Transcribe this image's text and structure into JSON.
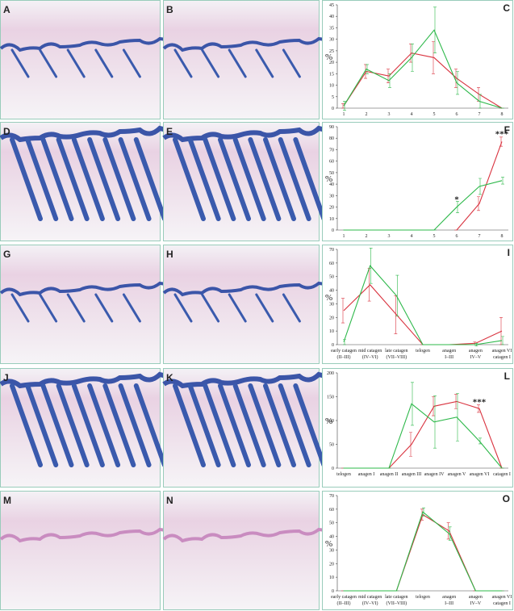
{
  "image_panels": [
    "A",
    "B",
    "D",
    "E",
    "G",
    "H",
    "J",
    "K",
    "M",
    "N"
  ],
  "chart_data": [
    {
      "type": "line",
      "panel_label": "C",
      "ylabel": "%",
      "categories": [
        "1",
        "2",
        "3",
        "4",
        "5",
        "6",
        "7",
        "8"
      ],
      "ylim": [
        0,
        45
      ],
      "yticks": [
        0,
        5,
        10,
        15,
        20,
        25,
        30,
        35,
        40,
        45
      ],
      "series": [
        {
          "color": "#d9333f",
          "values": [
            1,
            16,
            14,
            24,
            22,
            13,
            6,
            0
          ],
          "errors": [
            1,
            3,
            3,
            4,
            7,
            4,
            3,
            0
          ]
        },
        {
          "color": "#2db84a",
          "values": [
            1,
            17,
            12,
            22,
            34,
            11,
            3,
            0
          ],
          "errors": [
            2,
            2,
            3,
            6,
            10,
            5,
            3,
            0
          ]
        }
      ]
    },
    {
      "type": "line",
      "panel_label": "F",
      "ylabel": "%",
      "categories": [
        "1",
        "2",
        "3",
        "4",
        "5",
        "6",
        "7",
        "8"
      ],
      "ylim": [
        0,
        90
      ],
      "yticks": [
        0,
        10,
        20,
        30,
        40,
        50,
        60,
        70,
        80,
        90
      ],
      "annotations": [
        {
          "text": "*",
          "index": 5,
          "value": 27
        },
        {
          "text": "***",
          "index": 7,
          "value": 84
        }
      ],
      "series": [
        {
          "color": "#d9333f",
          "values": [
            null,
            null,
            null,
            null,
            null,
            0,
            23,
            77
          ],
          "errors": [
            null,
            null,
            null,
            null,
            null,
            0,
            6,
            4
          ]
        },
        {
          "color": "#2db84a",
          "values": [
            0,
            0,
            0,
            0,
            0,
            20,
            38,
            43
          ],
          "errors": [
            0,
            0,
            0,
            0,
            0,
            5,
            7,
            3
          ]
        }
      ]
    },
    {
      "type": "line",
      "panel_label": "I",
      "ylabel": "%",
      "categories": [
        [
          "early catagen",
          "(II–III)"
        ],
        [
          "mid catagen",
          "(IV–VI)"
        ],
        [
          "late catagen",
          "(VII–VIII)"
        ],
        [
          "telogen"
        ],
        [
          "anagen",
          "I–III"
        ],
        [
          "anagen",
          "IV–V"
        ],
        [
          "anagen VI",
          "catagen I"
        ]
      ],
      "ylim": [
        0,
        70
      ],
      "yticks": [
        0,
        10,
        20,
        30,
        40,
        50,
        60,
        70
      ],
      "series": [
        {
          "color": "#d9333f",
          "values": [
            25,
            44,
            22,
            0,
            0,
            1,
            10
          ],
          "errors": [
            9,
            12,
            14,
            0,
            0,
            1,
            10
          ]
        },
        {
          "color": "#2db84a",
          "values": [
            2,
            58,
            36,
            0,
            0,
            0,
            3
          ],
          "errors": [
            2,
            13,
            15,
            0,
            0,
            1,
            3
          ]
        }
      ]
    },
    {
      "type": "line",
      "panel_label": "L",
      "ylabel": "%",
      "categories": [
        [
          "telogen"
        ],
        [
          "anagen I"
        ],
        [
          "anagen II"
        ],
        [
          "anagen III"
        ],
        [
          "anagen IV"
        ],
        [
          "anagen V"
        ],
        [
          "anagen VI"
        ],
        [
          "catagen I"
        ]
      ],
      "ylim": [
        0,
        200
      ],
      "yticks": [
        0,
        50,
        100,
        150,
        200
      ],
      "annotations": [
        {
          "text": "***",
          "index": 6,
          "value": 140
        }
      ],
      "series": [
        {
          "color": "#d9333f",
          "values": [
            0,
            0,
            0,
            50,
            130,
            140,
            125,
            0
          ],
          "errors": [
            0,
            0,
            0,
            25,
            20,
            15,
            8,
            0
          ]
        },
        {
          "color": "#2db84a",
          "values": [
            0,
            0,
            0,
            135,
            97,
            107,
            57,
            0
          ],
          "errors": [
            0,
            0,
            0,
            45,
            55,
            50,
            6,
            0
          ]
        }
      ]
    },
    {
      "type": "line",
      "panel_label": "O",
      "ylabel": "%",
      "categories": [
        [
          "early catagen",
          "(II–III)"
        ],
        [
          "mid catagen",
          "(IV–VI)"
        ],
        [
          "late catagen",
          "(VII–VIII)"
        ],
        [
          "telogen"
        ],
        [
          "anagen",
          "I–III"
        ],
        [
          "anagen",
          "IV–V"
        ],
        [
          "anagen VI",
          "catagen I"
        ]
      ],
      "ylim": [
        0,
        70
      ],
      "yticks": [
        0,
        10,
        20,
        30,
        40,
        50,
        60,
        70
      ],
      "series": [
        {
          "color": "#d9333f",
          "values": [
            0,
            0,
            0,
            56,
            44,
            0,
            0
          ],
          "errors": [
            0,
            0,
            0,
            4,
            6,
            0,
            0
          ]
        },
        {
          "color": "#2db84a",
          "values": [
            0,
            0,
            0,
            58,
            42,
            0,
            0
          ],
          "errors": [
            0,
            0,
            0,
            3,
            5,
            0,
            0
          ]
        }
      ]
    }
  ]
}
